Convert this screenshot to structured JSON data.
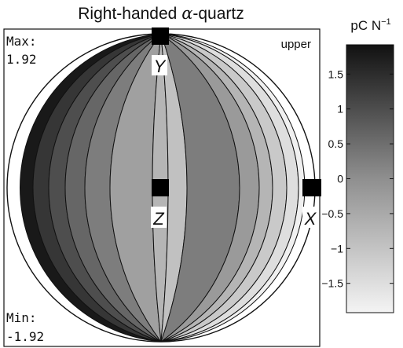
{
  "title": {
    "prefix": "Right-handed ",
    "symbol": "α",
    "suffix": "-quartz"
  },
  "stats": {
    "max_label": "Max:",
    "max_value": "1.92",
    "min_label": "Min:",
    "min_value": "-1.92"
  },
  "hemisphere": "upper",
  "axes": {
    "y": "Y",
    "z": "Z",
    "x": "X"
  },
  "colorbar": {
    "unit_base": "pC N",
    "unit_exp": "−1",
    "range": [
      -1.92,
      1.92
    ],
    "tick_labels": [
      "1.5",
      "1",
      "0.5",
      "0",
      "−0.5",
      "−1",
      "−1.5"
    ],
    "tick_values": [
      1.5,
      1,
      0.5,
      0,
      -0.5,
      -1,
      -1.5
    ],
    "high_color": "#111111",
    "low_color": "#f4f4f4"
  }
}
